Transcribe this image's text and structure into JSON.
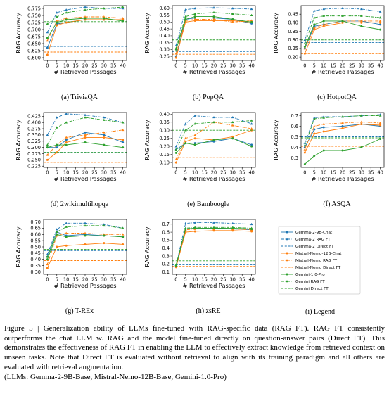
{
  "legend": {
    "caption": "(i) Legend",
    "series": [
      {
        "name": "Gemma-2-9B-Chat",
        "color": "#1f77b4",
        "linestyle": "solid",
        "marker": "o"
      },
      {
        "name": "Gemma-2 RAG FT",
        "color": "#1f77b4",
        "linestyle": "dashdot",
        "marker": "^"
      },
      {
        "name": "Gemma-2 Direct FT",
        "color": "#1f77b4",
        "linestyle": "dashed"
      },
      {
        "name": "Mistral-Nemo-12B-Chat",
        "color": "#ff7f0e",
        "linestyle": "solid",
        "marker": "o"
      },
      {
        "name": "Mistral-Nemo RAG FT",
        "color": "#ff7f0e",
        "linestyle": "dashdot",
        "marker": "^"
      },
      {
        "name": "Mistral-Nemo Direct FT",
        "color": "#ff7f0e",
        "linestyle": "dashed"
      },
      {
        "name": "Gemini-1.0-Pro",
        "color": "#2ca02c",
        "linestyle": "solid",
        "marker": "o"
      },
      {
        "name": "Gemini RAG FT",
        "color": "#2ca02c",
        "linestyle": "dashdot",
        "marker": "^"
      },
      {
        "name": "Gemini Direct FT",
        "color": "#2ca02c",
        "linestyle": "dashed"
      }
    ]
  },
  "chart_data": [
    {
      "type": "line",
      "caption": "(a) TriviaQA",
      "xlabel": "# Retrieved Passages",
      "ylabel": "RAG Accuracy",
      "x": [
        0,
        5,
        10,
        20,
        30,
        40
      ],
      "xlim": [
        -2,
        42
      ],
      "xticks": [
        0,
        5,
        10,
        15,
        20,
        25,
        30,
        35,
        40
      ],
      "ylim": [
        0.59,
        0.785
      ],
      "yticks": [
        {
          "value": 0.6,
          "label": "0.600"
        },
        0.625,
        {
          "value": 0.65,
          "label": "0.650"
        },
        0.675,
        {
          "value": 0.7,
          "label": "0.700"
        },
        0.725,
        {
          "value": 0.75,
          "label": "0.750"
        },
        0.775
      ],
      "series": [
        {
          "values": [
            0.635,
            0.72,
            0.725,
            0.735,
            0.735,
            0.735
          ]
        },
        {
          "values": [
            0.69,
            0.76,
            0.77,
            0.78,
            0.775,
            0.775
          ]
        },
        {
          "value": 0.64
        },
        {
          "values": [
            0.61,
            0.715,
            0.725,
            0.735,
            0.735,
            0.735
          ]
        },
        {
          "values": [
            0.66,
            0.73,
            0.74,
            0.745,
            0.745,
            0.74
          ]
        },
        {
          "value": 0.62
        },
        {
          "values": [
            0.67,
            0.725,
            0.735,
            0.74,
            0.74,
            0.73
          ]
        },
        {
          "values": [
            0.72,
            0.745,
            0.76,
            0.77,
            0.775,
            0.78
          ]
        },
        {
          "value": 0.728
        }
      ]
    },
    {
      "type": "line",
      "caption": "(b) PopQA",
      "xlabel": "# Retrieved Passages",
      "ylabel": "RAG Accuracy",
      "x": [
        0,
        5,
        10,
        20,
        30,
        40
      ],
      "xlim": [
        -2,
        42
      ],
      "xticks": [
        0,
        5,
        10,
        15,
        20,
        25,
        30,
        35,
        40
      ],
      "ylim": [
        0.22,
        0.62
      ],
      "yticks": [
        0.25,
        {
          "value": 0.3,
          "label": "0.30"
        },
        0.35,
        {
          "value": 0.4,
          "label": "0.40"
        },
        0.45,
        {
          "value": 0.5,
          "label": "0.50"
        },
        0.55,
        {
          "value": 0.6,
          "label": "0.60"
        }
      ],
      "series": [
        {
          "values": [
            0.25,
            0.52,
            0.53,
            0.53,
            0.52,
            0.49
          ]
        },
        {
          "values": [
            0.33,
            0.59,
            0.6,
            0.605,
            0.6,
            0.595
          ]
        },
        {
          "value": 0.285
        },
        {
          "values": [
            0.24,
            0.5,
            0.51,
            0.51,
            0.51,
            0.5
          ]
        },
        {
          "values": [
            0.27,
            0.51,
            0.52,
            0.52,
            0.5,
            0.51
          ]
        },
        {
          "value": 0.265
        },
        {
          "values": [
            0.3,
            0.52,
            0.54,
            0.54,
            0.52,
            0.5
          ]
        },
        {
          "values": [
            0.31,
            0.54,
            0.56,
            0.57,
            0.56,
            0.55
          ]
        },
        {
          "value": 0.37
        }
      ]
    },
    {
      "type": "line",
      "caption": "(c) HotpotQA",
      "xlabel": "# Retrieved Passages",
      "ylabel": "RAG Accuracy",
      "x": [
        0,
        5,
        10,
        20,
        30,
        40
      ],
      "xlim": [
        -2,
        42
      ],
      "xticks": [
        0,
        5,
        10,
        15,
        20,
        25,
        30,
        35,
        40
      ],
      "ylim": [
        0.18,
        0.5
      ],
      "yticks": [
        {
          "value": 0.2,
          "label": "0.20"
        },
        0.25,
        {
          "value": 0.3,
          "label": "0.30"
        },
        0.35,
        {
          "value": 0.4,
          "label": "0.40"
        },
        0.45
      ],
      "series": [
        {
          "values": [
            0.25,
            0.38,
            0.39,
            0.41,
            0.41,
            0.39
          ]
        },
        {
          "values": [
            0.3,
            0.47,
            0.48,
            0.485,
            0.48,
            0.465
          ]
        },
        {
          "value": 0.285
        },
        {
          "values": [
            0.22,
            0.36,
            0.38,
            0.4,
            0.4,
            0.4
          ]
        },
        {
          "values": [
            0.25,
            0.37,
            0.39,
            0.41,
            0.41,
            0.41
          ]
        },
        {
          "value": 0.22
        },
        {
          "values": [
            0.26,
            0.39,
            0.41,
            0.41,
            0.38,
            0.36
          ]
        },
        {
          "values": [
            0.28,
            0.43,
            0.44,
            0.44,
            0.44,
            0.43
          ]
        },
        {
          "value": 0.3
        }
      ]
    },
    {
      "type": "line",
      "caption": "(d) 2wikimultihopqa",
      "xlabel": "# Retrieved Passages",
      "ylabel": "RAG Accuracy",
      "x": [
        0,
        5,
        10,
        20,
        30,
        40
      ],
      "xlim": [
        -2,
        42
      ],
      "xticks": [
        0,
        5,
        10,
        15,
        20,
        25,
        30,
        35,
        40
      ],
      "ylim": [
        0.22,
        0.44
      ],
      "yticks": [
        0.225,
        {
          "value": 0.25,
          "label": "0.250"
        },
        0.275,
        {
          "value": 0.3,
          "label": "0.300"
        },
        0.325,
        {
          "value": 0.35,
          "label": "0.350"
        },
        0.375,
        {
          "value": 0.4,
          "label": "0.400"
        },
        0.425
      ],
      "series": [
        {
          "values": [
            0.3,
            0.3,
            0.33,
            0.36,
            0.35,
            0.32
          ]
        },
        {
          "values": [
            0.35,
            0.42,
            0.435,
            0.43,
            0.42,
            0.4
          ]
        },
        {
          "value": 0.28
        },
        {
          "values": [
            0.25,
            0.28,
            0.32,
            0.34,
            0.34,
            0.33
          ]
        },
        {
          "values": [
            0.27,
            0.31,
            0.34,
            0.35,
            0.36,
            0.37
          ]
        },
        {
          "value": 0.24
        },
        {
          "values": [
            0.3,
            0.31,
            0.31,
            0.32,
            0.31,
            0.3
          ]
        },
        {
          "values": [
            0.31,
            0.38,
            0.4,
            0.42,
            0.41,
            0.4
          ]
        },
        {
          "value": 0.28
        }
      ]
    },
    {
      "type": "line",
      "caption": "(e) Bamboogle",
      "xlabel": "# Retrieved Passages",
      "ylabel": "RAG Accuracy",
      "x": [
        0,
        5,
        10,
        20,
        30,
        40
      ],
      "xlim": [
        -2,
        42
      ],
      "xticks": [
        0,
        5,
        10,
        15,
        20,
        25,
        30,
        35,
        40
      ],
      "ylim": [
        0.07,
        0.41
      ],
      "yticks": [
        {
          "value": 0.1,
          "label": "0.10"
        },
        0.15,
        {
          "value": 0.2,
          "label": "0.20"
        },
        0.25,
        {
          "value": 0.3,
          "label": "0.30"
        },
        0.35,
        {
          "value": 0.4,
          "label": "0.40"
        }
      ],
      "series": [
        {
          "values": [
            0.18,
            0.22,
            0.22,
            0.23,
            0.25,
            0.21
          ]
        },
        {
          "values": [
            0.2,
            0.34,
            0.39,
            0.38,
            0.38,
            0.34
          ]
        },
        {
          "value": 0.19
        },
        {
          "values": [
            0.1,
            0.23,
            0.25,
            0.24,
            0.26,
            0.3
          ]
        },
        {
          "values": [
            0.12,
            0.25,
            0.27,
            0.35,
            0.33,
            0.31
          ]
        },
        {
          "value": 0.13
        },
        {
          "values": [
            0.16,
            0.22,
            0.21,
            0.24,
            0.25,
            0.2
          ]
        },
        {
          "values": [
            0.18,
            0.3,
            0.34,
            0.35,
            0.35,
            0.36
          ]
        },
        {
          "value": 0.3
        }
      ]
    },
    {
      "type": "line",
      "caption": "(f) ASQA",
      "xlabel": "# Retrieved Passages",
      "ylabel": "RAG Accuracy",
      "x": [
        0,
        5,
        10,
        20,
        30,
        40
      ],
      "xlim": [
        -2,
        42
      ],
      "xticks": [
        0,
        5,
        10,
        15,
        20,
        25,
        30,
        35,
        40
      ],
      "ylim": [
        0.21,
        0.73
      ],
      "yticks": [
        0.3,
        0.4,
        0.5,
        0.6,
        0.7
      ],
      "series": [
        {
          "values": [
            0.4,
            0.57,
            0.59,
            0.6,
            0.62,
            0.6
          ]
        },
        {
          "values": [
            0.44,
            0.68,
            0.69,
            0.69,
            0.7,
            0.71
          ]
        },
        {
          "value": 0.5
        },
        {
          "values": [
            0.35,
            0.53,
            0.55,
            0.58,
            0.62,
            0.61
          ]
        },
        {
          "values": [
            0.38,
            0.6,
            0.62,
            0.63,
            0.64,
            0.63
          ]
        },
        {
          "value": 0.41
        },
        {
          "values": [
            0.24,
            0.32,
            0.37,
            0.37,
            0.4,
            0.48
          ]
        },
        {
          "values": [
            0.42,
            0.67,
            0.68,
            0.69,
            0.7,
            0.7
          ]
        },
        {
          "value": 0.49
        }
      ]
    },
    {
      "type": "line",
      "caption": "(g) T-REx",
      "xlabel": "# Retrieved Passages",
      "ylabel": "RAG Accuracy",
      "x": [
        0,
        5,
        10,
        20,
        30,
        40
      ],
      "xlim": [
        -2,
        42
      ],
      "xticks": [
        0,
        5,
        10,
        15,
        20,
        25,
        30,
        35,
        40
      ],
      "ylim": [
        0.28,
        0.72
      ],
      "yticks": [
        {
          "value": 0.3,
          "label": "0.30"
        },
        0.35,
        {
          "value": 0.4,
          "label": "0.40"
        },
        0.45,
        {
          "value": 0.5,
          "label": "0.50"
        },
        0.55,
        {
          "value": 0.6,
          "label": "0.60"
        },
        0.65,
        {
          "value": 0.7,
          "label": "0.70"
        }
      ],
      "series": [
        {
          "values": [
            0.42,
            0.62,
            0.59,
            0.6,
            0.59,
            0.58
          ]
        },
        {
          "values": [
            0.44,
            0.64,
            0.69,
            0.69,
            0.68,
            0.65
          ]
        },
        {
          "value": 0.47
        },
        {
          "values": [
            0.33,
            0.5,
            0.51,
            0.52,
            0.53,
            0.52
          ]
        },
        {
          "values": [
            0.36,
            0.59,
            0.61,
            0.61,
            0.6,
            0.6
          ]
        },
        {
          "value": 0.39
        },
        {
          "values": [
            0.4,
            0.6,
            0.58,
            0.59,
            0.59,
            0.58
          ]
        },
        {
          "values": [
            0.42,
            0.62,
            0.66,
            0.67,
            0.67,
            0.65
          ]
        },
        {
          "value": 0.48
        }
      ]
    },
    {
      "type": "line",
      "caption": "(h) zsRE",
      "xlabel": "# Retrieved Passages",
      "ylabel": "RAG Accuracy",
      "x": [
        0,
        5,
        10,
        20,
        30,
        40
      ],
      "xlim": [
        -2,
        42
      ],
      "xticks": [
        0,
        5,
        10,
        15,
        20,
        25,
        30,
        35,
        40
      ],
      "ylim": [
        0.07,
        0.76
      ],
      "yticks": [
        0.1,
        0.2,
        0.3,
        0.4,
        0.5,
        0.6,
        0.7
      ],
      "series": [
        {
          "values": [
            0.17,
            0.64,
            0.65,
            0.65,
            0.64,
            0.63
          ]
        },
        {
          "values": [
            0.18,
            0.71,
            0.72,
            0.72,
            0.71,
            0.7
          ]
        },
        {
          "value": 0.19
        },
        {
          "values": [
            0.16,
            0.6,
            0.61,
            0.62,
            0.62,
            0.61
          ]
        },
        {
          "values": [
            0.17,
            0.63,
            0.64,
            0.64,
            0.64,
            0.63
          ]
        },
        {
          "value": 0.17
        },
        {
          "values": [
            0.18,
            0.64,
            0.65,
            0.65,
            0.65,
            0.64
          ]
        },
        {
          "values": [
            0.19,
            0.65,
            0.66,
            0.66,
            0.66,
            0.65
          ]
        },
        {
          "value": 0.24
        }
      ]
    }
  ],
  "caption": {
    "label": "Figure 5 |",
    "text": "Generalization ability of LLMs fine-tuned with RAG-specific data (RAG FT). RAG FT consistently outperforms the chat LLM w. RAG and the model fine-tuned directly on question-answer pairs (Direct FT). This demonstrates the effectiveness of RAG FT in enabling the LLM to effectively extract knowledge from retrieved context on unseen tasks. Note that Direct FT is evaluated without retrieval to align with its training paradigm and all others are evaluated with retrieval augmentation.",
    "note": "(LLMs: Gemma-2-9B-Base, Mistral-Nemo-12B-Base, Gemini-1.0-Pro)"
  }
}
